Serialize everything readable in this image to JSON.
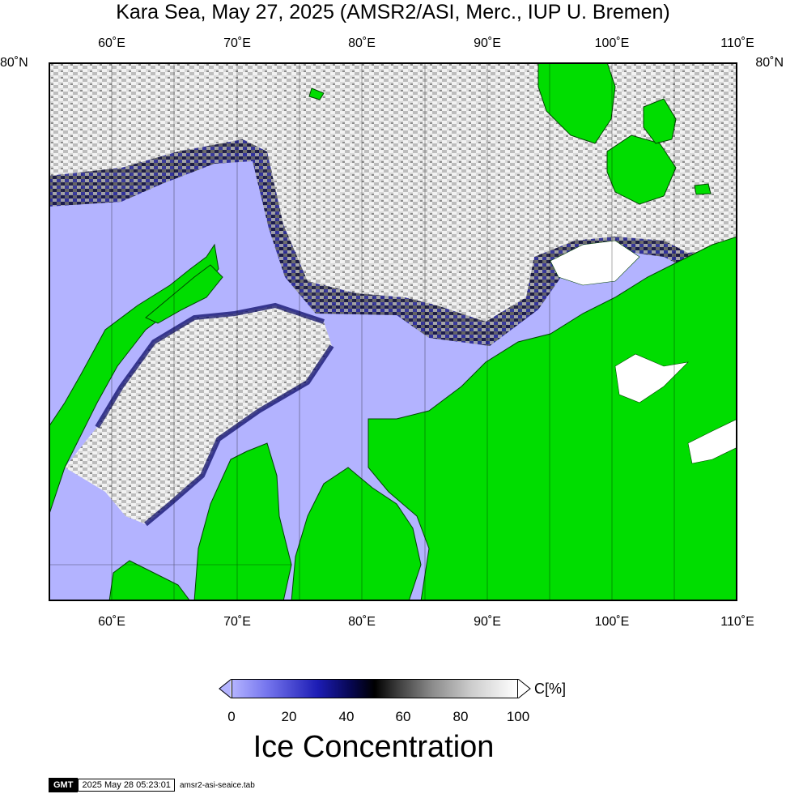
{
  "title": "Kara Sea, May 27, 2025 (AMSR2/ASI, Merc., IUP U. Bremen)",
  "lon_ticks": [
    "60˚E",
    "70˚E",
    "80˚E",
    "90˚E",
    "100˚E",
    "110˚E"
  ],
  "lat_tick": "80˚N",
  "colors": {
    "open_water": "#b3b3ff",
    "low_ice": "#3030c8",
    "mid_ice": "#000080",
    "high_ice": "#ffffff",
    "land": "#00dd00",
    "coast": "#004400"
  },
  "colorbar": {
    "unit": "C[%]",
    "ticks": [
      "0",
      "20",
      "40",
      "60",
      "80",
      "100"
    ],
    "title": "Ice Concentration"
  },
  "footer": {
    "logo": "GMT",
    "timestamp": "2025 May 28 05:23:01",
    "filename": "amsr2-asi-seaice.tab"
  }
}
